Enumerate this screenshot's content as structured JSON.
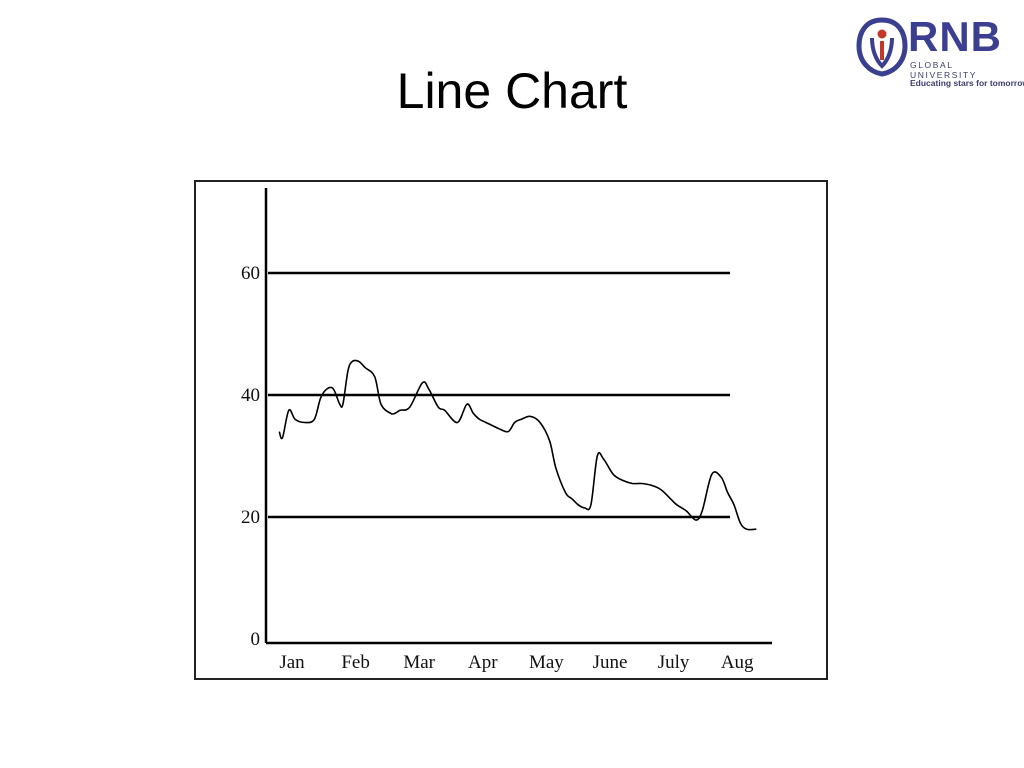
{
  "slide": {
    "title": "Line Chart"
  },
  "logo": {
    "name": "RNB",
    "subtitle": "GLOBAL UNIVERSITY",
    "tagline": "Educating stars for tomorrow",
    "primary_color": "#3b3f8f",
    "accent_color": "#c0392b"
  },
  "chart_data": {
    "type": "line",
    "title": "",
    "xlabel": "",
    "ylabel": "",
    "categories": [
      "Jan",
      "Feb",
      "Mar",
      "Apr",
      "May",
      "June",
      "July",
      "Aug"
    ],
    "y_ticks": [
      0,
      20,
      40,
      60
    ],
    "ylim": [
      0,
      70
    ],
    "grid": "horizontal lines at 20, 40, 60",
    "reference_lines": [
      20,
      40,
      60
    ],
    "line_color": "#000000",
    "series": [
      {
        "x": [
          -0.2,
          -0.15,
          -0.05,
          0.05,
          0.2,
          0.35,
          0.45,
          0.55,
          0.65,
          0.75,
          0.8,
          0.88,
          0.95,
          1.05,
          1.15,
          1.3,
          1.4,
          1.55,
          1.62,
          1.7,
          1.85,
          2.05,
          2.15,
          2.3,
          2.4,
          2.6,
          2.75,
          2.85,
          2.95,
          3.05,
          3.25,
          3.4,
          3.5,
          3.6,
          3.75,
          3.9,
          4.05,
          4.15,
          4.3,
          4.4,
          4.5,
          4.6,
          4.7,
          4.8,
          4.9,
          5.05,
          5.2,
          5.35,
          5.5,
          5.65,
          5.8,
          5.95,
          6.05,
          6.2,
          6.35,
          6.45,
          6.6,
          6.75,
          6.85,
          6.95,
          7.05,
          7.15,
          7.3
        ],
        "y": [
          34,
          33,
          37.5,
          36,
          35.5,
          36,
          39.5,
          41,
          41,
          38.5,
          38.5,
          44,
          45.5,
          45.5,
          44.5,
          43,
          38.5,
          37,
          37,
          37.5,
          38,
          42,
          41,
          38,
          37.5,
          35.5,
          38.5,
          37,
          36,
          35.5,
          34.5,
          34,
          35.5,
          36,
          36.5,
          35.5,
          32.5,
          28,
          24,
          23,
          22,
          21.5,
          22,
          30,
          29.5,
          27,
          26,
          25.5,
          25.5,
          25.2,
          24.5,
          23,
          22,
          21,
          19.5,
          21,
          27,
          26.5,
          24,
          22,
          19,
          18,
          18
        ]
      }
    ]
  }
}
